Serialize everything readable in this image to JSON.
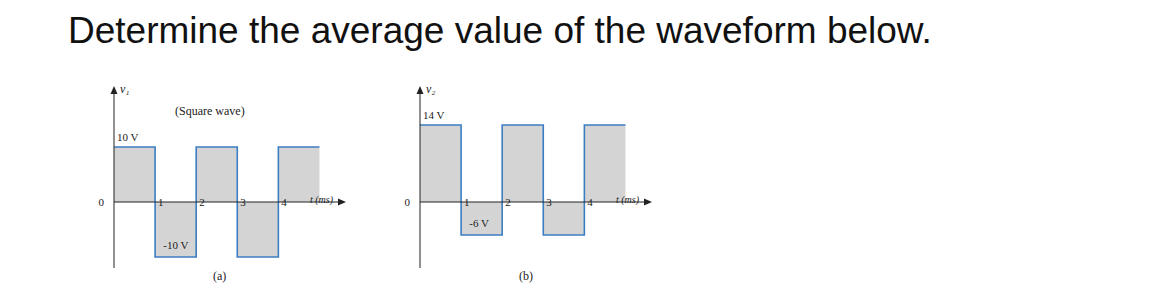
{
  "title": "Determine the average value of the waveform below.",
  "chart_data": [
    {
      "type": "area",
      "caption": "(a)",
      "subtitle": "(Square wave)",
      "y_label": "v₁",
      "x_label": "t (ms)",
      "line_style": "step",
      "color": "#3b7dc4",
      "x": [
        0,
        1,
        2,
        3,
        4,
        5
      ],
      "values": [
        10,
        -10,
        10,
        -10,
        10,
        10
      ],
      "xlim": [
        0,
        5.5
      ],
      "xticks": [
        0,
        1,
        2,
        3,
        4
      ],
      "ylim": [
        -12,
        20
      ],
      "yticks": [
        {
          "value": 10,
          "label": "10 V"
        },
        {
          "value": -10,
          "label": "-10 V"
        }
      ]
    },
    {
      "type": "area",
      "caption": "(b)",
      "y_label": "v₂",
      "x_label": "t (ms)",
      "line_style": "step",
      "color": "#3b7dc4",
      "x": [
        0,
        1,
        2,
        3,
        4,
        5
      ],
      "values": [
        14,
        -6,
        14,
        -6,
        14,
        14
      ],
      "xlim": [
        0,
        5.5
      ],
      "xticks": [
        0,
        1,
        2,
        3,
        4
      ],
      "ylim": [
        -12,
        20
      ],
      "yticks": [
        {
          "value": 14,
          "label": "14 V"
        },
        {
          "value": -6,
          "label": "-6 V"
        }
      ]
    }
  ]
}
